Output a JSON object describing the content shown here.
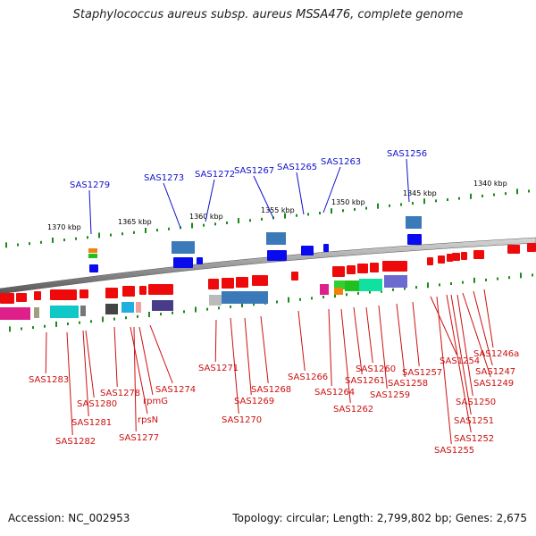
{
  "title": "Staphylococcus aureus subsp. aureus MSSA476, complete genome",
  "footer": {
    "accession": "Accession: NC_002953",
    "topology": "Topology: circular; Length: 2,799,802 bp; Genes: 2,675"
  },
  "scale_labels": [
    "1370 kbp",
    "1365 kbp",
    "1360 kbp",
    "1355 kbp",
    "1350 kbp",
    "1345 kbp",
    "1340 kbp"
  ],
  "forward_genes": [
    "SAS1279",
    "SAS1273",
    "SAS1272",
    "SAS1267",
    "SAS1265",
    "SAS1263",
    "SAS1256"
  ],
  "reverse_genes": [
    "SAS1283",
    "SAS1280",
    "SAS1281",
    "SAS1282",
    "SAS1278",
    "SAS1277",
    "rpsN",
    "rpmG",
    "SAS1274",
    "SAS1271",
    "SAS1270",
    "SAS1269",
    "SAS1268",
    "SAS1266",
    "SAS1264",
    "SAS1262",
    "SAS1261",
    "SAS1260",
    "SAS1259",
    "SAS1258",
    "SAS1257",
    "SAS1254",
    "SAS1255",
    "SAS1252",
    "SAS1251",
    "SAS1250",
    "SAS1249",
    "SAS1247",
    "SAS1246a"
  ],
  "colors": {
    "forward_label": "#1010cc",
    "reverse_label": "#cc1010",
    "forward_gene": "#0a0aee",
    "reverse_gene": "#ee0a0a",
    "tick": "#1a8a1a"
  }
}
